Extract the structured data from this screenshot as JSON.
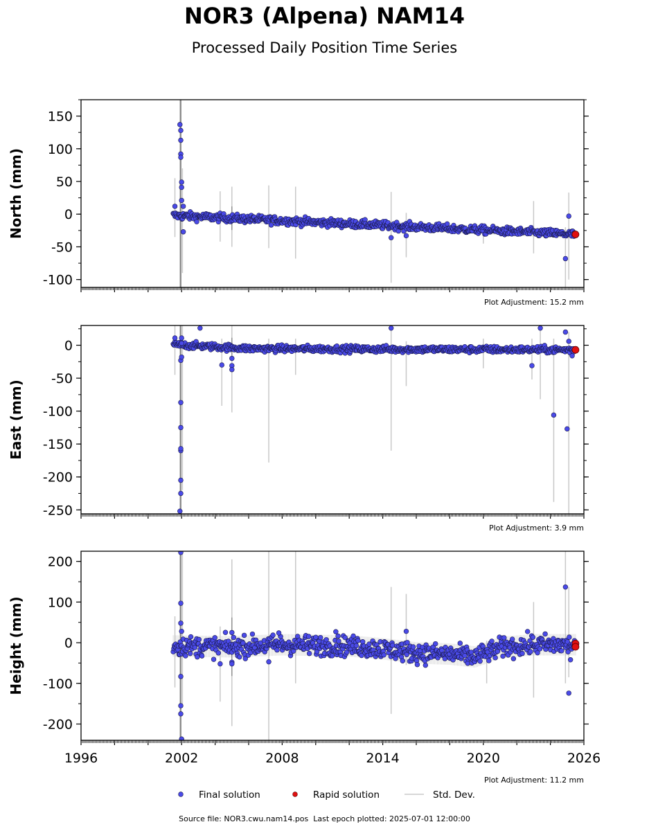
{
  "title": "NOR3 (Alpena) NAM14",
  "subtitle": "Processed Daily Position Time Series",
  "source_line": {
    "file_label": "Source file: NOR3.cwu.nam14.pos",
    "epoch_label": "Last epoch plotted: 2025-07-01 12:00:00"
  },
  "legend": {
    "final": "Final solution",
    "rapid": "Rapid solution",
    "std": "Std. Dev."
  },
  "colors": {
    "final_fill": "#4a4ae8",
    "final_edge": "#1a1a4a",
    "rapid_fill": "#e01010",
    "std_line": "#c8c8c8"
  },
  "chart_data": [
    {
      "type": "scatter",
      "ylabel": "North (mm)",
      "xlim": [
        1996,
        2026
      ],
      "ylim": [
        -112,
        175
      ],
      "yticks": [
        150,
        100,
        50,
        0,
        -50,
        -100
      ],
      "xtick_labels": [],
      "adjustment": "Plot Adjustment: 15.2 mm",
      "trend": [
        [
          2001.5,
          -2
        ],
        [
          2025.5,
          -31
        ]
      ],
      "scatter_amplitude": 3,
      "series": [
        {
          "name": "Final solution",
          "x": [
            2001.9,
            2001.95,
            2001.95,
            2001.95,
            2001.95,
            2002.0,
            2002.0,
            2002.0,
            2002.1,
            2001.6,
            2014.5,
            2015.4,
            2024.9,
            2025.1,
            2002.1
          ],
          "y": [
            137,
            128,
            113,
            92,
            87,
            49,
            41,
            21,
            12,
            12,
            -36,
            -33,
            -68,
            -3,
            -27
          ]
        },
        {
          "name": "Rapid solution",
          "x": [
            2025.5
          ],
          "y": [
            -31
          ]
        }
      ],
      "stddev": [
        {
          "x": 2001.9,
          "lo": -112,
          "hi": 175
        },
        {
          "x": 2002.05,
          "lo": -90,
          "hi": 70
        },
        {
          "x": 2001.6,
          "lo": -35,
          "hi": 55
        },
        {
          "x": 2004.3,
          "lo": -42,
          "hi": 35
        },
        {
          "x": 2005.0,
          "lo": -50,
          "hi": 42
        },
        {
          "x": 2007.2,
          "lo": -52,
          "hi": 44
        },
        {
          "x": 2008.8,
          "lo": -68,
          "hi": 42
        },
        {
          "x": 2014.5,
          "lo": -105,
          "hi": 34
        },
        {
          "x": 2015.4,
          "lo": -66,
          "hi": 2
        },
        {
          "x": 2020.0,
          "lo": -45,
          "hi": -20
        },
        {
          "x": 2023.0,
          "lo": -60,
          "hi": 20
        },
        {
          "x": 2024.9,
          "lo": -112,
          "hi": -20
        },
        {
          "x": 2025.1,
          "lo": -100,
          "hi": 33
        }
      ]
    },
    {
      "type": "scatter",
      "ylabel": "East (mm)",
      "xlim": [
        1996,
        2026
      ],
      "ylim": [
        -256,
        30
      ],
      "yticks": [
        0,
        -50,
        -100,
        -150,
        -200,
        -250
      ],
      "xtick_labels": [],
      "adjustment": "Plot Adjustment: 3.9 mm",
      "trend": [
        [
          2001.5,
          1
        ],
        [
          2006,
          -5
        ],
        [
          2014,
          -6
        ],
        [
          2025.5,
          -7
        ]
      ],
      "scatter_amplitude": 2.5,
      "series": [
        {
          "name": "Final solution",
          "x": [
            2001.9,
            2001.95,
            2001.95,
            2001.95,
            2001.95,
            2001.95,
            2001.95,
            2001.95,
            2002.0,
            2002.0,
            2001.6,
            2002.0,
            2003.1,
            2004.4,
            2005.0,
            2005.0,
            2005.0,
            2014.5,
            2022.9,
            2023.4,
            2024.2,
            2024.9,
            2025.1,
            2025.0,
            2025.3
          ],
          "y": [
            -252,
            -225,
            -205,
            -160,
            -157,
            -125,
            -87,
            -23,
            -18,
            11,
            11,
            3,
            26,
            -30,
            -31,
            -20,
            -37,
            26,
            -31,
            26,
            -106,
            20,
            6,
            -127,
            -16
          ]
        },
        {
          "name": "Rapid solution",
          "x": [
            2025.5
          ],
          "y": [
            -7
          ]
        }
      ],
      "stddev": [
        {
          "x": 2001.9,
          "lo": -256,
          "hi": 30
        },
        {
          "x": 2002.05,
          "lo": -220,
          "hi": 30
        },
        {
          "x": 2001.6,
          "lo": -45,
          "hi": 30
        },
        {
          "x": 2004.4,
          "lo": -92,
          "hi": 10
        },
        {
          "x": 2005.0,
          "lo": -102,
          "hi": 30
        },
        {
          "x": 2007.2,
          "lo": -178,
          "hi": 10
        },
        {
          "x": 2008.8,
          "lo": -45,
          "hi": 10
        },
        {
          "x": 2014.5,
          "lo": -160,
          "hi": 26
        },
        {
          "x": 2015.4,
          "lo": -62,
          "hi": 6
        },
        {
          "x": 2020.0,
          "lo": -35,
          "hi": 10
        },
        {
          "x": 2022.9,
          "lo": -52,
          "hi": 10
        },
        {
          "x": 2023.4,
          "lo": -82,
          "hi": 26
        },
        {
          "x": 2024.2,
          "lo": -238,
          "hi": 10
        },
        {
          "x": 2025.1,
          "lo": -256,
          "hi": 20
        }
      ]
    },
    {
      "type": "scatter",
      "ylabel": "Height (mm)",
      "xlim": [
        1996,
        2026
      ],
      "ylim": [
        -240,
        225
      ],
      "yticks": [
        200,
        100,
        0,
        -100,
        -200
      ],
      "xtick_labels": [
        "1996",
        "2002",
        "2008",
        "2014",
        "2020",
        "2026"
      ],
      "adjustment": "Plot Adjustment: 11.2 mm",
      "trend": [
        [
          2001.5,
          -8
        ],
        [
          2005,
          -10
        ],
        [
          2008,
          -5
        ],
        [
          2012,
          -8
        ],
        [
          2014,
          -15
        ],
        [
          2016,
          -25
        ],
        [
          2018,
          -28
        ],
        [
          2019.5,
          -35
        ],
        [
          2020.2,
          -25
        ],
        [
          2021,
          -12
        ],
        [
          2023,
          -5
        ],
        [
          2025.5,
          -5
        ]
      ],
      "scatter_amplitude": 12,
      "series": [
        {
          "name": "Final solution",
          "x": [
            2001.95,
            2001.95,
            2001.95,
            2001.95,
            2001.95,
            2001.95,
            2002.0,
            2002.0,
            2004.3,
            2005.0,
            2005.0,
            2005.0,
            2007.2,
            2007.8,
            2011.2,
            2015.4,
            2024.9,
            2025.1,
            2025.2
          ],
          "y": [
            222,
            97,
            48,
            -83,
            -155,
            -175,
            28,
            -237,
            -52,
            25,
            -48,
            -52,
            -47,
            24,
            27,
            28,
            137,
            -124,
            -42
          ]
        },
        {
          "name": "Rapid solution",
          "x": [
            2025.5,
            2025.5
          ],
          "y": [
            -2,
            -10
          ]
        }
      ],
      "stddev": [
        {
          "x": 2001.9,
          "lo": -240,
          "hi": 225
        },
        {
          "x": 2002.05,
          "lo": -160,
          "hi": 225
        },
        {
          "x": 2001.6,
          "lo": -110,
          "hi": 65
        },
        {
          "x": 2004.3,
          "lo": -145,
          "hi": 40
        },
        {
          "x": 2005.0,
          "lo": -205,
          "hi": 205
        },
        {
          "x": 2007.2,
          "lo": -240,
          "hi": 225
        },
        {
          "x": 2008.8,
          "lo": -100,
          "hi": 225
        },
        {
          "x": 2014.5,
          "lo": -175,
          "hi": 137
        },
        {
          "x": 2015.4,
          "lo": -55,
          "hi": 120
        },
        {
          "x": 2020.2,
          "lo": -100,
          "hi": 5
        },
        {
          "x": 2023.0,
          "lo": -135,
          "hi": 100
        },
        {
          "x": 2024.9,
          "lo": -100,
          "hi": 225
        },
        {
          "x": 2025.1,
          "lo": -85,
          "hi": 137
        }
      ]
    }
  ]
}
